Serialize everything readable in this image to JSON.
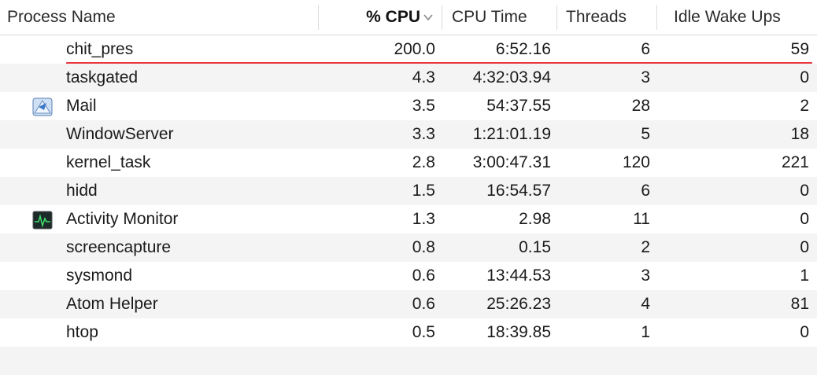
{
  "columns": {
    "name": "Process Name",
    "cpu": "% CPU",
    "cpu_time": "CPU Time",
    "threads": "Threads",
    "idle": "Idle Wake Ups"
  },
  "rows": [
    {
      "name": "chit_pres",
      "cpu": "200.0",
      "cpu_time": "6:52.16",
      "threads": "6",
      "idle": "59",
      "icon": "",
      "highlight": true
    },
    {
      "name": "taskgated",
      "cpu": "4.3",
      "cpu_time": "4:32:03.94",
      "threads": "3",
      "idle": "0",
      "icon": ""
    },
    {
      "name": "Mail",
      "cpu": "3.5",
      "cpu_time": "54:37.55",
      "threads": "28",
      "idle": "2",
      "icon": "mail-app-icon"
    },
    {
      "name": "WindowServer",
      "cpu": "3.3",
      "cpu_time": "1:21:01.19",
      "threads": "5",
      "idle": "18",
      "icon": ""
    },
    {
      "name": "kernel_task",
      "cpu": "2.8",
      "cpu_time": "3:00:47.31",
      "threads": "120",
      "idle": "221",
      "icon": ""
    },
    {
      "name": "hidd",
      "cpu": "1.5",
      "cpu_time": "16:54.57",
      "threads": "6",
      "idle": "0",
      "icon": ""
    },
    {
      "name": "Activity Monitor",
      "cpu": "1.3",
      "cpu_time": "2.98",
      "threads": "11",
      "idle": "0",
      "icon": "activity-monitor-icon"
    },
    {
      "name": "screencapture",
      "cpu": "0.8",
      "cpu_time": "0.15",
      "threads": "2",
      "idle": "0",
      "icon": ""
    },
    {
      "name": "sysmond",
      "cpu": "0.6",
      "cpu_time": "13:44.53",
      "threads": "3",
      "idle": "1",
      "icon": ""
    },
    {
      "name": "Atom Helper",
      "cpu": "0.6",
      "cpu_time": "25:26.23",
      "threads": "4",
      "idle": "81",
      "icon": ""
    },
    {
      "name": "htop",
      "cpu": "0.5",
      "cpu_time": "18:39.85",
      "threads": "1",
      "idle": "0",
      "icon": ""
    }
  ],
  "colors": {
    "highlight": "#e8383d",
    "alt_row": "#f4f4f4"
  }
}
